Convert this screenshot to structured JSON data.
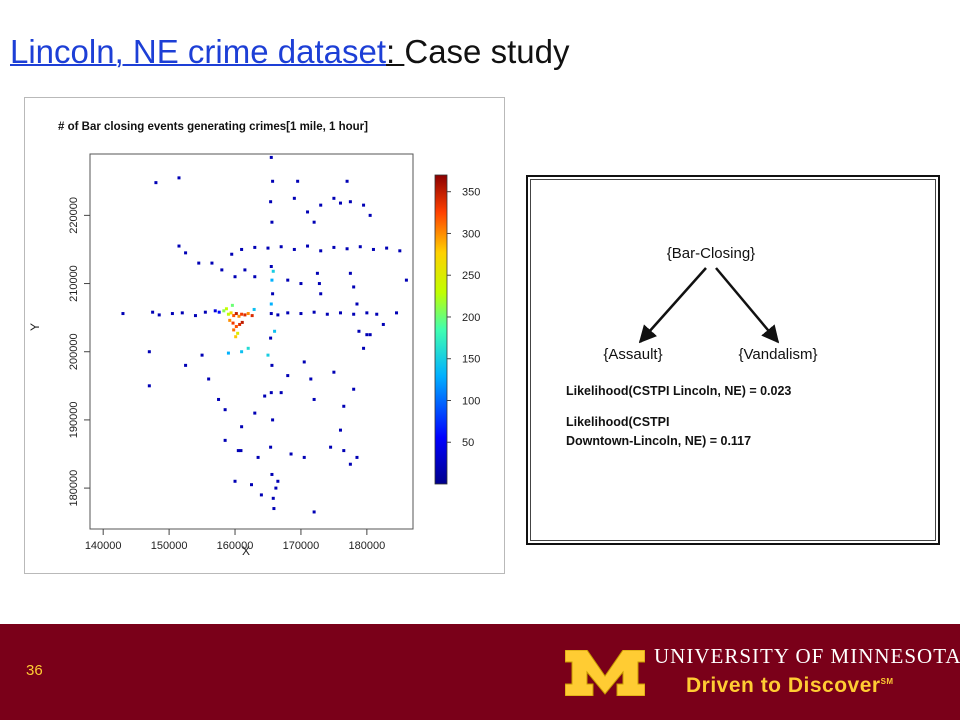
{
  "slide": {
    "title_link": "Lincoln, NE crime dataset",
    "title_sep": ": ",
    "title_rest": "Case study",
    "page_number": "36"
  },
  "plot": {
    "title": "# of Bar closing events generating crimes[1 mile, 1 hour]",
    "xlabel": "X",
    "ylabel": "Y",
    "x_ticks": [
      "140000",
      "150000",
      "160000",
      "170000",
      "180000"
    ],
    "y_ticks": [
      "180000",
      "190000",
      "200000",
      "210000",
      "220000"
    ],
    "colorbar_ticks": [
      "50",
      "100",
      "150",
      "200",
      "250",
      "300",
      "350"
    ]
  },
  "chart_data": {
    "type": "scatter",
    "title": "# of Bar closing events generating crimes[1 mile, 1 hour]",
    "xlabel": "X",
    "ylabel": "Y",
    "xlim": [
      138000,
      187000
    ],
    "ylim": [
      174000,
      229000
    ],
    "colorbar": {
      "min": 0,
      "max": 370,
      "label_ticks": [
        50,
        100,
        150,
        200,
        250,
        300,
        350
      ]
    },
    "points": [
      {
        "x": 159000,
        "y": 205500,
        "v": 230
      },
      {
        "x": 159400,
        "y": 205700,
        "v": 270
      },
      {
        "x": 159800,
        "y": 205300,
        "v": 320
      },
      {
        "x": 160200,
        "y": 205600,
        "v": 350
      },
      {
        "x": 160600,
        "y": 205200,
        "v": 300
      },
      {
        "x": 161000,
        "y": 205500,
        "v": 330
      },
      {
        "x": 161500,
        "y": 205400,
        "v": 340
      },
      {
        "x": 162000,
        "y": 205600,
        "v": 300
      },
      {
        "x": 162600,
        "y": 205300,
        "v": 340
      },
      {
        "x": 158300,
        "y": 206000,
        "v": 210
      },
      {
        "x": 158700,
        "y": 206300,
        "v": 230
      },
      {
        "x": 159200,
        "y": 204600,
        "v": 300
      },
      {
        "x": 159700,
        "y": 204200,
        "v": 330
      },
      {
        "x": 160200,
        "y": 203700,
        "v": 320
      },
      {
        "x": 160700,
        "y": 204000,
        "v": 340
      },
      {
        "x": 161100,
        "y": 204300,
        "v": 350
      },
      {
        "x": 159800,
        "y": 203200,
        "v": 310
      },
      {
        "x": 160400,
        "y": 202700,
        "v": 250
      },
      {
        "x": 160100,
        "y": 202200,
        "v": 280
      },
      {
        "x": 159600,
        "y": 206800,
        "v": 200
      },
      {
        "x": 157600,
        "y": 205800,
        "v": 60
      },
      {
        "x": 157000,
        "y": 206000,
        "v": 40
      },
      {
        "x": 162900,
        "y": 206200,
        "v": 140
      },
      {
        "x": 165500,
        "y": 207000,
        "v": 130
      },
      {
        "x": 165800,
        "y": 211800,
        "v": 150
      },
      {
        "x": 165600,
        "y": 210500,
        "v": 130
      },
      {
        "x": 162000,
        "y": 200500,
        "v": 160
      },
      {
        "x": 161000,
        "y": 200000,
        "v": 140
      },
      {
        "x": 159000,
        "y": 199800,
        "v": 130
      },
      {
        "x": 165000,
        "y": 199500,
        "v": 150
      },
      {
        "x": 166000,
        "y": 203000,
        "v": 140
      },
      {
        "x": 143000,
        "y": 205600,
        "v": 20
      },
      {
        "x": 147500,
        "y": 205800,
        "v": 20
      },
      {
        "x": 148500,
        "y": 205400,
        "v": 20
      },
      {
        "x": 150500,
        "y": 205600,
        "v": 20
      },
      {
        "x": 152000,
        "y": 205700,
        "v": 20
      },
      {
        "x": 154000,
        "y": 205300,
        "v": 20
      },
      {
        "x": 155500,
        "y": 205800,
        "v": 20
      },
      {
        "x": 165500,
        "y": 205600,
        "v": 20
      },
      {
        "x": 166500,
        "y": 205400,
        "v": 20
      },
      {
        "x": 168000,
        "y": 205700,
        "v": 20
      },
      {
        "x": 170000,
        "y": 205600,
        "v": 20
      },
      {
        "x": 172000,
        "y": 205800,
        "v": 20
      },
      {
        "x": 174000,
        "y": 205500,
        "v": 20
      },
      {
        "x": 176000,
        "y": 205700,
        "v": 20
      },
      {
        "x": 178000,
        "y": 205500,
        "v": 20
      },
      {
        "x": 180000,
        "y": 205700,
        "v": 20
      },
      {
        "x": 181500,
        "y": 205500,
        "v": 20
      },
      {
        "x": 184500,
        "y": 205700,
        "v": 20
      },
      {
        "x": 151500,
        "y": 215500,
        "v": 20
      },
      {
        "x": 152500,
        "y": 214500,
        "v": 20
      },
      {
        "x": 154500,
        "y": 213000,
        "v": 20
      },
      {
        "x": 156500,
        "y": 213000,
        "v": 20
      },
      {
        "x": 159500,
        "y": 214300,
        "v": 20
      },
      {
        "x": 161000,
        "y": 215000,
        "v": 20
      },
      {
        "x": 163000,
        "y": 215300,
        "v": 20
      },
      {
        "x": 165000,
        "y": 215200,
        "v": 20
      },
      {
        "x": 167000,
        "y": 215400,
        "v": 20
      },
      {
        "x": 169000,
        "y": 215000,
        "v": 20
      },
      {
        "x": 171000,
        "y": 215500,
        "v": 20
      },
      {
        "x": 173000,
        "y": 214800,
        "v": 20
      },
      {
        "x": 175000,
        "y": 215300,
        "v": 20
      },
      {
        "x": 177000,
        "y": 215100,
        "v": 20
      },
      {
        "x": 179000,
        "y": 215400,
        "v": 20
      },
      {
        "x": 181000,
        "y": 215000,
        "v": 20
      },
      {
        "x": 183000,
        "y": 215200,
        "v": 20
      },
      {
        "x": 185000,
        "y": 214800,
        "v": 20
      },
      {
        "x": 165500,
        "y": 228500,
        "v": 20
      },
      {
        "x": 165700,
        "y": 225000,
        "v": 20
      },
      {
        "x": 165400,
        "y": 222000,
        "v": 20
      },
      {
        "x": 165600,
        "y": 219000,
        "v": 20
      },
      {
        "x": 165500,
        "y": 212500,
        "v": 20
      },
      {
        "x": 165700,
        "y": 208500,
        "v": 20
      },
      {
        "x": 165400,
        "y": 202000,
        "v": 20
      },
      {
        "x": 165600,
        "y": 198000,
        "v": 20
      },
      {
        "x": 165500,
        "y": 194000,
        "v": 20
      },
      {
        "x": 165700,
        "y": 190000,
        "v": 20
      },
      {
        "x": 165400,
        "y": 186000,
        "v": 20
      },
      {
        "x": 165600,
        "y": 182000,
        "v": 20
      },
      {
        "x": 166200,
        "y": 180000,
        "v": 20
      },
      {
        "x": 165800,
        "y": 178500,
        "v": 20
      },
      {
        "x": 166500,
        "y": 181000,
        "v": 20
      },
      {
        "x": 165900,
        "y": 177000,
        "v": 20
      },
      {
        "x": 172000,
        "y": 176500,
        "v": 20
      },
      {
        "x": 148000,
        "y": 224800,
        "v": 20
      },
      {
        "x": 151500,
        "y": 225500,
        "v": 20
      },
      {
        "x": 169500,
        "y": 225000,
        "v": 20
      },
      {
        "x": 177000,
        "y": 225000,
        "v": 20
      },
      {
        "x": 175000,
        "y": 222500,
        "v": 20
      },
      {
        "x": 173000,
        "y": 221500,
        "v": 20
      },
      {
        "x": 176000,
        "y": 221800,
        "v": 20
      },
      {
        "x": 177500,
        "y": 222000,
        "v": 20
      },
      {
        "x": 179500,
        "y": 221500,
        "v": 20
      },
      {
        "x": 180500,
        "y": 220000,
        "v": 20
      },
      {
        "x": 171000,
        "y": 220500,
        "v": 20
      },
      {
        "x": 172000,
        "y": 219000,
        "v": 20
      },
      {
        "x": 172500,
        "y": 211500,
        "v": 20
      },
      {
        "x": 173000,
        "y": 208500,
        "v": 20
      },
      {
        "x": 172800,
        "y": 210000,
        "v": 20
      },
      {
        "x": 177500,
        "y": 211500,
        "v": 20
      },
      {
        "x": 178000,
        "y": 209500,
        "v": 20
      },
      {
        "x": 178500,
        "y": 207000,
        "v": 20
      },
      {
        "x": 178800,
        "y": 203000,
        "v": 20
      },
      {
        "x": 179500,
        "y": 200500,
        "v": 20
      },
      {
        "x": 180500,
        "y": 202500,
        "v": 20
      },
      {
        "x": 186000,
        "y": 210500,
        "v": 20
      },
      {
        "x": 147000,
        "y": 200000,
        "v": 20
      },
      {
        "x": 147000,
        "y": 195000,
        "v": 20
      },
      {
        "x": 152500,
        "y": 198000,
        "v": 20
      },
      {
        "x": 156000,
        "y": 196000,
        "v": 20
      },
      {
        "x": 155000,
        "y": 199500,
        "v": 20
      },
      {
        "x": 157500,
        "y": 193000,
        "v": 20
      },
      {
        "x": 158500,
        "y": 191500,
        "v": 20
      },
      {
        "x": 161000,
        "y": 189000,
        "v": 20
      },
      {
        "x": 163000,
        "y": 191000,
        "v": 20
      },
      {
        "x": 164500,
        "y": 193500,
        "v": 20
      },
      {
        "x": 167000,
        "y": 194000,
        "v": 20
      },
      {
        "x": 168000,
        "y": 196500,
        "v": 20
      },
      {
        "x": 170500,
        "y": 198500,
        "v": 20
      },
      {
        "x": 171500,
        "y": 196000,
        "v": 20
      },
      {
        "x": 172000,
        "y": 193000,
        "v": 20
      },
      {
        "x": 175000,
        "y": 197000,
        "v": 20
      },
      {
        "x": 176500,
        "y": 192000,
        "v": 20
      },
      {
        "x": 178000,
        "y": 194500,
        "v": 20
      },
      {
        "x": 176000,
        "y": 188500,
        "v": 20
      },
      {
        "x": 174500,
        "y": 186000,
        "v": 20
      },
      {
        "x": 176500,
        "y": 185500,
        "v": 20
      },
      {
        "x": 178500,
        "y": 184500,
        "v": 20
      },
      {
        "x": 177500,
        "y": 183500,
        "v": 20
      },
      {
        "x": 160500,
        "y": 185500,
        "v": 20
      },
      {
        "x": 160900,
        "y": 185500,
        "v": 20
      },
      {
        "x": 168500,
        "y": 185000,
        "v": 20
      },
      {
        "x": 170500,
        "y": 184500,
        "v": 20
      },
      {
        "x": 163500,
        "y": 184500,
        "v": 20
      },
      {
        "x": 160000,
        "y": 181000,
        "v": 20
      },
      {
        "x": 158500,
        "y": 187000,
        "v": 20
      },
      {
        "x": 162500,
        "y": 180500,
        "v": 20
      },
      {
        "x": 164000,
        "y": 179000,
        "v": 20
      },
      {
        "x": 163000,
        "y": 211000,
        "v": 20
      },
      {
        "x": 161500,
        "y": 212000,
        "v": 20
      },
      {
        "x": 160000,
        "y": 211000,
        "v": 20
      },
      {
        "x": 158000,
        "y": 212000,
        "v": 20
      },
      {
        "x": 168000,
        "y": 210500,
        "v": 20
      },
      {
        "x": 170000,
        "y": 210000,
        "v": 20
      },
      {
        "x": 180000,
        "y": 202500,
        "v": 20
      },
      {
        "x": 182500,
        "y": 204000,
        "v": 20
      },
      {
        "x": 169000,
        "y": 222500,
        "v": 20
      }
    ]
  },
  "tree": {
    "root": "{Bar-Closing}",
    "left_child": "{Assault}",
    "right_child": "{Vandalism}",
    "line1": "Likelihood(CSTPI Lincoln, NE) = 0.023",
    "line2": "Likelihood(CSTPI",
    "line3": "Downtown-Lincoln, NE) = 0.117"
  },
  "footer": {
    "university": "UNIVERSITY OF MINNESOTA",
    "tagline": "Driven to Discover",
    "tagline_mark": "SM",
    "bg_color": "#7a0019",
    "accent_color": "#ffcc33"
  }
}
